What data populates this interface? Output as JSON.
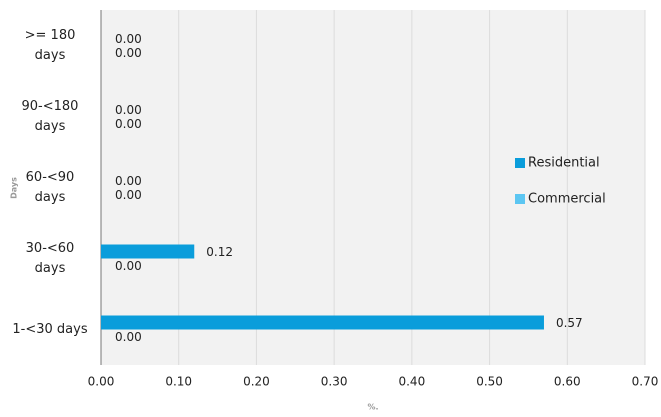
{
  "chart_data": {
    "type": "hbar",
    "x_label": "%.",
    "y_label": "Days",
    "categories": [
      ">= 180\ndays",
      "90-<180\ndays",
      "60-<90\ndays",
      "30-<60\ndays",
      "1-<30 days"
    ],
    "series": [
      {
        "name": "Residential",
        "color": "#0a9ddb",
        "values": [
          0,
          0,
          0,
          0.12,
          0.57
        ],
        "value_labels": [
          "0.00",
          "0.00",
          "0.00",
          "0.12",
          "0.57"
        ]
      },
      {
        "name": "Commercial",
        "color": "#5cc6f2",
        "values": [
          0,
          0,
          0,
          0,
          0
        ],
        "value_labels": [
          "0.00",
          "0.00",
          "0.00",
          "0.00",
          "0.00"
        ]
      }
    ],
    "xlim": [
      0,
      0.7
    ],
    "xticks": [
      {
        "value": 0,
        "label": "0.00"
      },
      {
        "value": 0.1,
        "label": "0.10"
      },
      {
        "value": 0.2,
        "label": "0.20"
      },
      {
        "value": 0.3,
        "label": "0.30"
      },
      {
        "value": 0.4,
        "label": "0.40"
      },
      {
        "value": 0.5,
        "label": "0.50"
      },
      {
        "value": 0.6,
        "label": "0.60"
      },
      {
        "value": 0.7,
        "label": "0.70"
      }
    ],
    "grid": true,
    "legend": "right"
  }
}
